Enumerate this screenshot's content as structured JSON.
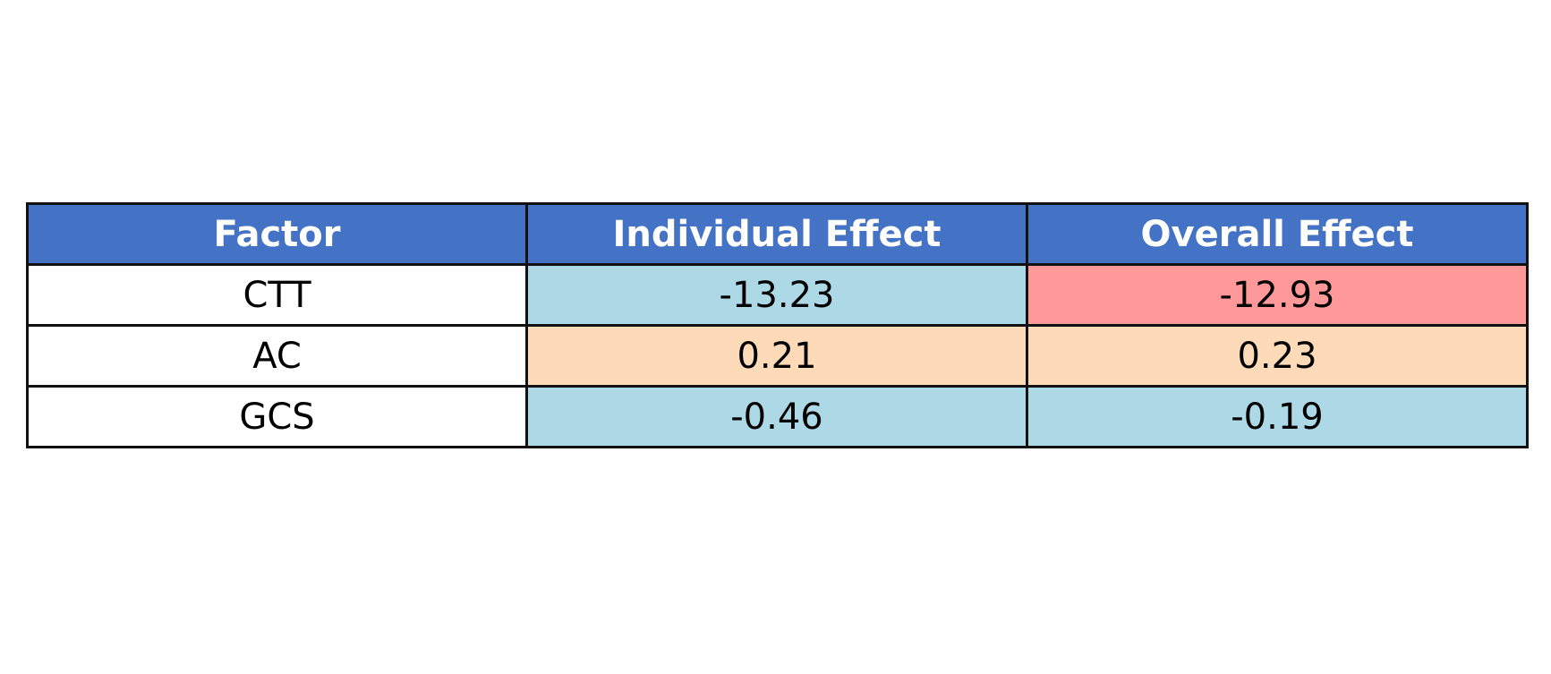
{
  "chart_data": {
    "type": "table",
    "columns": [
      "Factor",
      "Individual Effect",
      "Overall Effect"
    ],
    "rows": [
      {
        "factor": "CTT",
        "individual": "-13.23",
        "overall": "-12.93",
        "colors": {
          "factor": "#ffffff",
          "individual": "#add8e6",
          "overall": "#ff9999"
        }
      },
      {
        "factor": "AC",
        "individual": "0.21",
        "overall": "0.23",
        "colors": {
          "factor": "#ffffff",
          "individual": "#ffdab9",
          "overall": "#ffdab9"
        }
      },
      {
        "factor": "GCS",
        "individual": "-0.46",
        "overall": "-0.19",
        "colors": {
          "factor": "#ffffff",
          "individual": "#add8e6",
          "overall": "#add8e6"
        }
      }
    ],
    "header_color": "#4472c4",
    "header_text_color": "#ffffff",
    "border_color": "#111111"
  }
}
